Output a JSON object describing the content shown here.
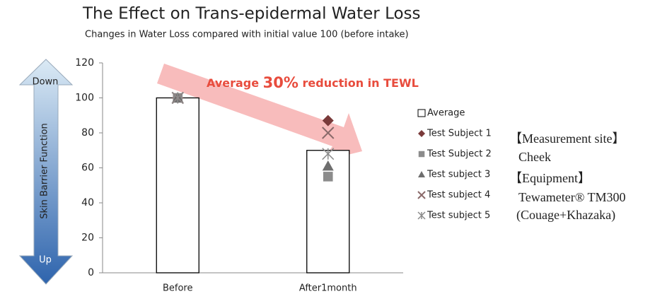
{
  "chart_data": {
    "type": "bar",
    "title": "The Effect on Trans-epidermal Water Loss",
    "subtitle": "Changes in Water Loss compared with initial value 100 (before intake)",
    "annotation": [
      "Average ",
      "30%",
      " reduction in TEWL"
    ],
    "side_arrow": {
      "top": "Down",
      "label": "Skin Barrier Function",
      "bottom": "Up"
    },
    "notes": [
      "【Measurement site】",
      "Cheek",
      "【Equipment】",
      "Tewameter® TM300",
      "(Couage+Khazaka)"
    ],
    "categories": [
      "Before",
      "After1month"
    ],
    "ylim": [
      0,
      120
    ],
    "yticks": [
      0,
      20,
      40,
      60,
      80,
      100,
      120
    ],
    "grid": false,
    "series": [
      {
        "name": "Average",
        "marker": "bar",
        "color": "#000000",
        "values": [
          100,
          70
        ]
      },
      {
        "name": "Test Subject 1",
        "marker": "diamond",
        "color": "#7a3a3a",
        "values": [
          100,
          87
        ]
      },
      {
        "name": "Test Subject 2",
        "marker": "square",
        "color": "#8c8c8c",
        "values": [
          100,
          55
        ]
      },
      {
        "name": "Test subject 3",
        "marker": "triangle",
        "color": "#6e6e6e",
        "values": [
          100,
          61
        ]
      },
      {
        "name": "Test subject 4",
        "marker": "x",
        "color": "#8a6a6a",
        "values": [
          100,
          80
        ]
      },
      {
        "name": "Test subject 5",
        "marker": "star",
        "color": "#8c8c8c",
        "values": [
          100,
          68
        ]
      }
    ]
  }
}
